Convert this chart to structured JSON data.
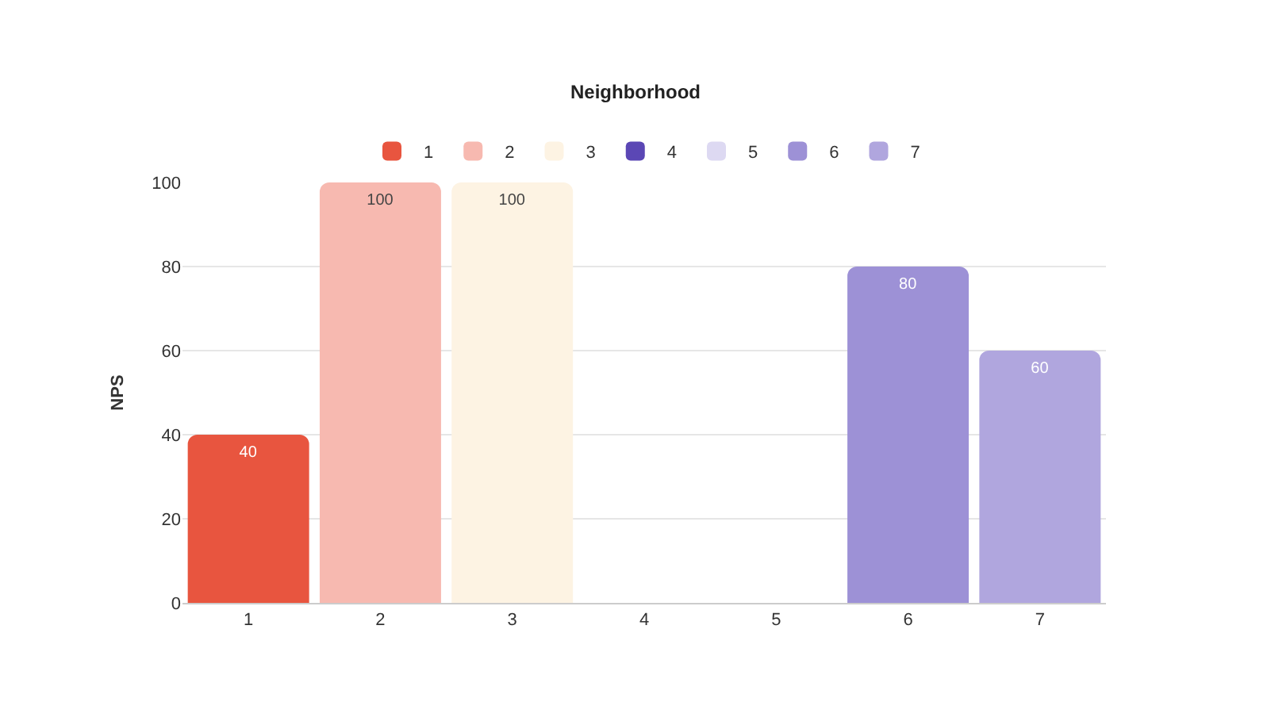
{
  "chart_data": {
    "type": "bar",
    "title": "Neighborhood",
    "ylabel": "NPS",
    "categories": [
      "1",
      "2",
      "3",
      "4",
      "5",
      "6",
      "7"
    ],
    "series": [
      {
        "name": "1",
        "color": "#e8553f",
        "values": [
          40,
          null,
          null,
          null,
          null,
          null,
          null
        ]
      },
      {
        "name": "2",
        "color": "#f7b9b0",
        "values": [
          null,
          100,
          null,
          null,
          null,
          null,
          null
        ]
      },
      {
        "name": "3",
        "color": "#fdf3e3",
        "values": [
          null,
          null,
          100,
          null,
          null,
          null,
          null
        ]
      },
      {
        "name": "4",
        "color": "#5b47b5",
        "values": [
          null,
          null,
          null,
          null,
          null,
          null,
          null
        ]
      },
      {
        "name": "5",
        "color": "#ddd9f2",
        "values": [
          null,
          null,
          null,
          null,
          null,
          null,
          null
        ]
      },
      {
        "name": "6",
        "color": "#9d91d6",
        "values": [
          null,
          null,
          null,
          null,
          null,
          80,
          null
        ]
      },
      {
        "name": "7",
        "color": "#b0a6de",
        "values": [
          null,
          null,
          null,
          null,
          null,
          null,
          60
        ]
      }
    ],
    "ylim": [
      0,
      100
    ],
    "yticks": [
      0,
      20,
      40,
      60,
      80,
      100
    ],
    "grid": "y",
    "legend": "top",
    "data_labels": true
  }
}
